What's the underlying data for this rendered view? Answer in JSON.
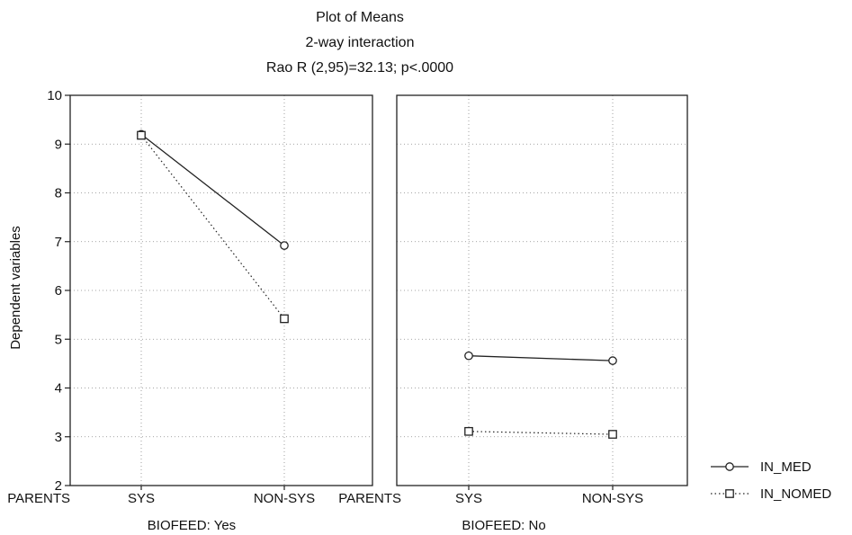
{
  "chart_data": {
    "type": "line",
    "title": "Plot of Means",
    "subtitle": "2-way interaction",
    "statistic": "Rao R (2,95)=32.13; p<.0000",
    "ylabel": "Dependent variables",
    "ylim": [
      2,
      10
    ],
    "yticks": [
      "2",
      "3",
      "4",
      "5",
      "6",
      "7",
      "8",
      "9",
      "10"
    ],
    "factor_label": "PARENTS",
    "categories": [
      "SYS",
      "NON-SYS"
    ],
    "grid": true,
    "legend_position": "right-bottom",
    "panels": [
      {
        "xlabel": "BIOFEED: Yes",
        "series": [
          {
            "name": "IN_MED",
            "marker": "circle",
            "line": "solid",
            "values": [
              9.2,
              6.92
            ]
          },
          {
            "name": "IN_NOMED",
            "marker": "square",
            "line": "dotted",
            "values": [
              9.18,
              5.42
            ]
          }
        ]
      },
      {
        "xlabel": "BIOFEED: No",
        "series": [
          {
            "name": "IN_MED",
            "marker": "circle",
            "line": "solid",
            "values": [
              4.66,
              4.56
            ]
          },
          {
            "name": "IN_NOMED",
            "marker": "square",
            "line": "dotted",
            "values": [
              3.11,
              3.05
            ]
          }
        ]
      }
    ]
  }
}
